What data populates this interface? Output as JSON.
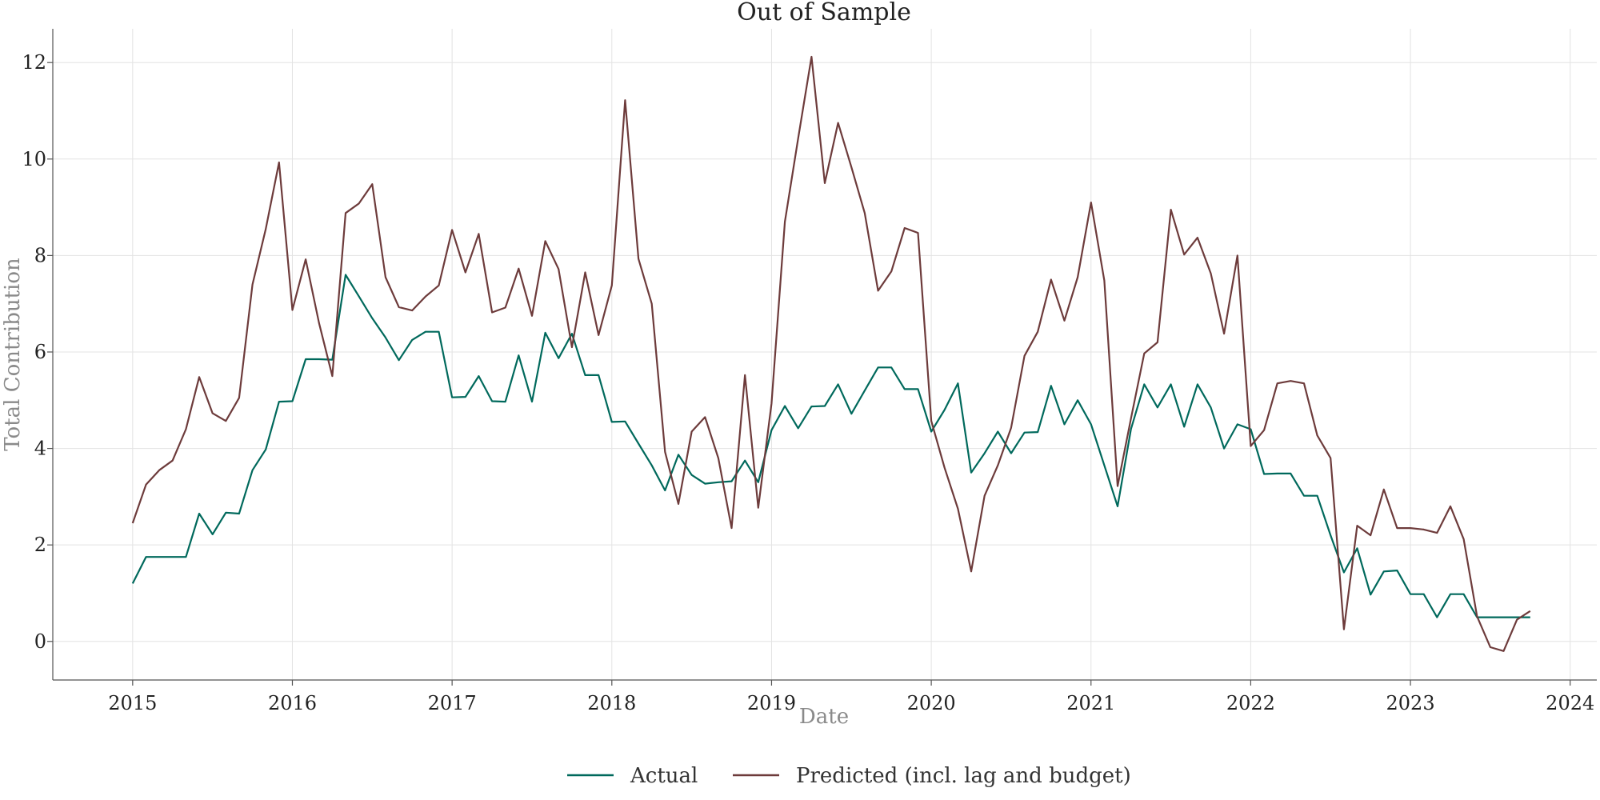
{
  "chart_data": {
    "type": "line",
    "title": "Out of Sample",
    "xlabel": "Date",
    "ylabel": "Total Contribution",
    "x_ticks": [
      "2015",
      "2016",
      "2017",
      "2018",
      "2019",
      "2020",
      "2021",
      "2022",
      "2023",
      "2024"
    ],
    "y_ticks": [
      "0",
      "2",
      "4",
      "6",
      "8",
      "10",
      "12"
    ],
    "xlim": [
      "2014-07",
      "2024-03"
    ],
    "ylim": [
      -0.8,
      12.7
    ],
    "grid": true,
    "legend_position": "bottom-center",
    "x": [
      "2015-01",
      "2015-02",
      "2015-03",
      "2015-04",
      "2015-05",
      "2015-06",
      "2015-07",
      "2015-08",
      "2015-09",
      "2015-10",
      "2015-11",
      "2015-12",
      "2016-01",
      "2016-02",
      "2016-03",
      "2016-04",
      "2016-05",
      "2016-06",
      "2016-07",
      "2016-08",
      "2016-09",
      "2016-10",
      "2016-11",
      "2016-12",
      "2017-01",
      "2017-02",
      "2017-03",
      "2017-04",
      "2017-05",
      "2017-06",
      "2017-07",
      "2017-08",
      "2017-09",
      "2017-10",
      "2017-11",
      "2017-12",
      "2018-01",
      "2018-02",
      "2018-03",
      "2018-04",
      "2018-05",
      "2018-06",
      "2018-07",
      "2018-08",
      "2018-09",
      "2018-10",
      "2018-11",
      "2018-12",
      "2019-01",
      "2019-02",
      "2019-03",
      "2019-04",
      "2019-05",
      "2019-06",
      "2019-07",
      "2019-08",
      "2019-09",
      "2019-10",
      "2019-11",
      "2019-12",
      "2020-01",
      "2020-02",
      "2020-03",
      "2020-04",
      "2020-05",
      "2020-06",
      "2020-07",
      "2020-08",
      "2020-09",
      "2020-10",
      "2020-11",
      "2020-12",
      "2021-01",
      "2021-02",
      "2021-03",
      "2021-04",
      "2021-05",
      "2021-06",
      "2021-07",
      "2021-08",
      "2021-09",
      "2021-10",
      "2021-11",
      "2021-12",
      "2022-01",
      "2022-02",
      "2022-03",
      "2022-04",
      "2022-05",
      "2022-06",
      "2022-07",
      "2022-08",
      "2022-09",
      "2022-10",
      "2022-11",
      "2022-12",
      "2023-01",
      "2023-02",
      "2023-03",
      "2023-04",
      "2023-05",
      "2023-06",
      "2023-07",
      "2023-08",
      "2023-09",
      "2023-10"
    ],
    "series": [
      {
        "name": "Actual",
        "color": "#00695c",
        "values": [
          1.2,
          1.75,
          1.75,
          1.75,
          1.75,
          2.65,
          2.22,
          2.67,
          2.65,
          3.55,
          3.98,
          4.97,
          4.98,
          5.85,
          5.85,
          5.84,
          7.6,
          7.15,
          6.7,
          6.3,
          5.83,
          6.25,
          6.42,
          6.42,
          5.06,
          5.07,
          5.5,
          4.98,
          4.97,
          5.93,
          4.97,
          6.4,
          5.87,
          6.38,
          5.52,
          5.52,
          4.55,
          4.56,
          4.1,
          3.65,
          3.13,
          3.87,
          3.45,
          3.27,
          3.3,
          3.32,
          3.75,
          3.3,
          4.38,
          4.88,
          4.42,
          4.87,
          4.88,
          5.33,
          4.72,
          5.2,
          5.68,
          5.68,
          5.23,
          5.23,
          4.35,
          4.8,
          5.35,
          3.5,
          3.9,
          4.35,
          3.9,
          4.33,
          4.34,
          5.3,
          4.5,
          5.0,
          4.5,
          3.65,
          2.8,
          4.4,
          5.33,
          4.85,
          5.33,
          4.45,
          5.33,
          4.85,
          4.0,
          4.5,
          4.4,
          3.47,
          3.48,
          3.48,
          3.02,
          3.02,
          2.2,
          1.43,
          1.93,
          0.97,
          1.45,
          1.47,
          0.98,
          0.98,
          0.5,
          0.98,
          0.98,
          0.5,
          0.5,
          0.5,
          0.5,
          0.5
        ]
      },
      {
        "name": "Predicted (incl. lag and budget)",
        "color": "#6d3b3b",
        "values": [
          2.45,
          3.25,
          3.55,
          3.75,
          4.4,
          5.48,
          4.73,
          4.57,
          5.05,
          7.4,
          8.55,
          9.93,
          6.87,
          7.92,
          6.6,
          5.5,
          8.88,
          9.08,
          9.48,
          7.55,
          6.93,
          6.86,
          7.15,
          7.38,
          8.53,
          7.65,
          8.45,
          6.82,
          6.92,
          7.73,
          6.75,
          8.3,
          7.72,
          6.1,
          7.65,
          6.35,
          7.38,
          11.22,
          7.93,
          7.0,
          3.93,
          2.85,
          4.35,
          4.65,
          3.8,
          2.35,
          5.52,
          2.77,
          4.93,
          8.7,
          10.43,
          12.12,
          9.5,
          10.75,
          9.83,
          8.88,
          7.27,
          7.67,
          8.57,
          8.47,
          4.57,
          3.6,
          2.75,
          1.45,
          3.02,
          3.65,
          4.43,
          5.92,
          6.42,
          7.5,
          6.65,
          7.55,
          9.1,
          7.48,
          3.22,
          4.62,
          5.97,
          6.2,
          8.95,
          8.02,
          8.37,
          7.63,
          6.38,
          8.0,
          4.05,
          4.38,
          5.35,
          5.4,
          5.35,
          4.27,
          3.8,
          0.25,
          2.4,
          2.2,
          3.15,
          2.35,
          2.35,
          2.32,
          2.25,
          2.8,
          2.12,
          0.52,
          -0.12,
          -0.2,
          0.45,
          0.63
        ]
      }
    ]
  }
}
